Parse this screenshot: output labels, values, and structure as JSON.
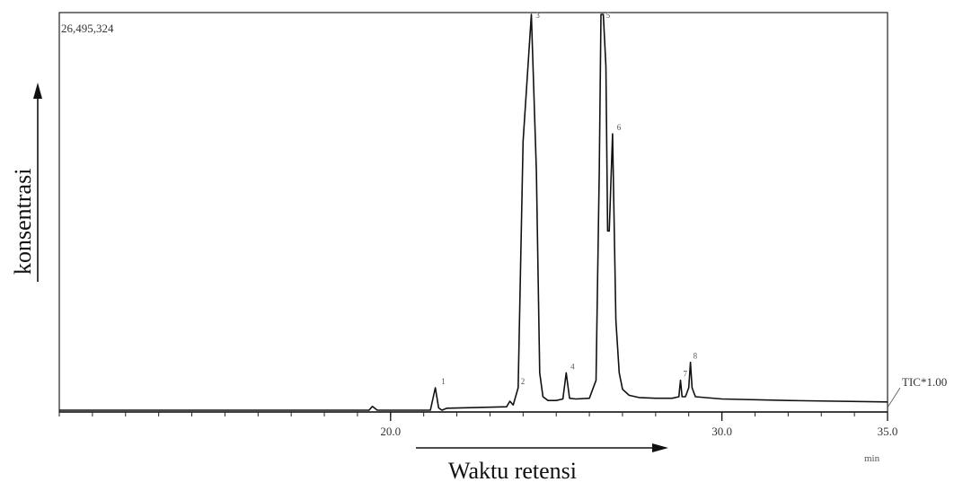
{
  "chart_data": {
    "type": "line",
    "title": "",
    "xlabel": "Waktu retensi",
    "ylabel": "konsentrasi",
    "x_unit": "min",
    "xlim": [
      10.0,
      35.0
    ],
    "ylim": [
      0,
      26495324
    ],
    "y_max_label": "26,495,324",
    "trace_label": "TIC*1.00",
    "grid": false,
    "x_ticks": [
      {
        "value": 20.0,
        "label": "20.0"
      },
      {
        "value": 30.0,
        "label": "30.0"
      },
      {
        "value": 35.0,
        "label": "35.0"
      }
    ],
    "series": [
      {
        "name": "TIC*1.00",
        "x": [
          10.0,
          19.0,
          19.35,
          19.45,
          19.6,
          21.2,
          21.35,
          21.45,
          21.55,
          21.7,
          23.5,
          23.6,
          23.7,
          23.85,
          24.0,
          24.25,
          24.4,
          24.5,
          24.6,
          24.75,
          25.0,
          25.2,
          25.3,
          25.4,
          25.6,
          26.0,
          26.2,
          26.3,
          26.35,
          26.42,
          26.5,
          26.55,
          26.6,
          26.7,
          26.8,
          26.9,
          27.0,
          27.2,
          27.5,
          28.0,
          28.5,
          28.7,
          28.75,
          28.8,
          28.9,
          29.0,
          29.05,
          29.1,
          29.2,
          30.0,
          32.0,
          35.0
        ],
        "y": [
          0,
          0,
          0,
          250000,
          0,
          0,
          1500000,
          150000,
          0,
          130000,
          230000,
          600000,
          350000,
          1500000,
          18000000,
          26495324,
          16000000,
          2500000,
          900000,
          650000,
          650000,
          750000,
          2500000,
          800000,
          750000,
          800000,
          2000000,
          16000000,
          26495324,
          26495324,
          23000000,
          12000000,
          12000000,
          18500000,
          6000000,
          2500000,
          1400000,
          1000000,
          850000,
          800000,
          800000,
          900000,
          2000000,
          900000,
          900000,
          1500000,
          3200000,
          1500000,
          900000,
          750000,
          650000,
          550000
        ]
      }
    ],
    "peak_labels": [
      {
        "x": 21.45,
        "y": 1500000,
        "label": "1"
      },
      {
        "x": 23.85,
        "y": 1500000,
        "label": "2"
      },
      {
        "x": 24.3,
        "y": 26495324,
        "label": "3"
      },
      {
        "x": 25.35,
        "y": 2500000,
        "label": "4"
      },
      {
        "x": 26.42,
        "y": 26495324,
        "label": "5"
      },
      {
        "x": 26.75,
        "y": 18500000,
        "label": "6"
      },
      {
        "x": 28.75,
        "y": 2000000,
        "label": "7"
      },
      {
        "x": 29.05,
        "y": 3200000,
        "label": "8"
      }
    ]
  }
}
